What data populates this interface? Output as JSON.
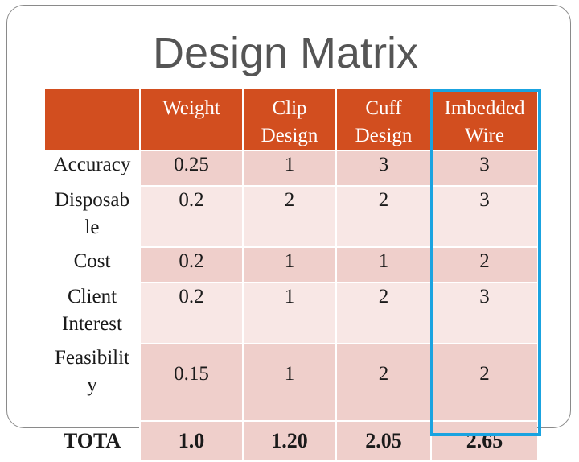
{
  "slide": {
    "title": "Design Matrix"
  },
  "matrix": {
    "headers": [
      "",
      "Weight",
      "Clip\nDesign",
      "Cuff\nDesign",
      "Imbedded\nWire"
    ],
    "rows": [
      {
        "label": "Accuracy",
        "cells": [
          "0.25",
          "1",
          "3",
          "3"
        ]
      },
      {
        "label": "Disposab\nle",
        "cells": [
          "0.2",
          "2",
          "2",
          "3"
        ]
      },
      {
        "label": "Cost",
        "cells": [
          "0.2",
          "1",
          "1",
          "2"
        ]
      },
      {
        "label": "Client\nInterest",
        "cells": [
          "0.2",
          "1",
          "2",
          "3"
        ]
      },
      {
        "label": "Feasibilit\ny",
        "cells": [
          "0.15",
          "1",
          "2",
          "2"
        ]
      }
    ],
    "total": {
      "label": "TOTA",
      "cells": [
        "1.0",
        "1.20",
        "2.05",
        "2.65"
      ]
    }
  },
  "colors": {
    "header_bg": "#d24e1f",
    "row_dark": "#efcfcb",
    "row_light": "#f8e7e5",
    "highlight_border": "#1aa3e0"
  }
}
